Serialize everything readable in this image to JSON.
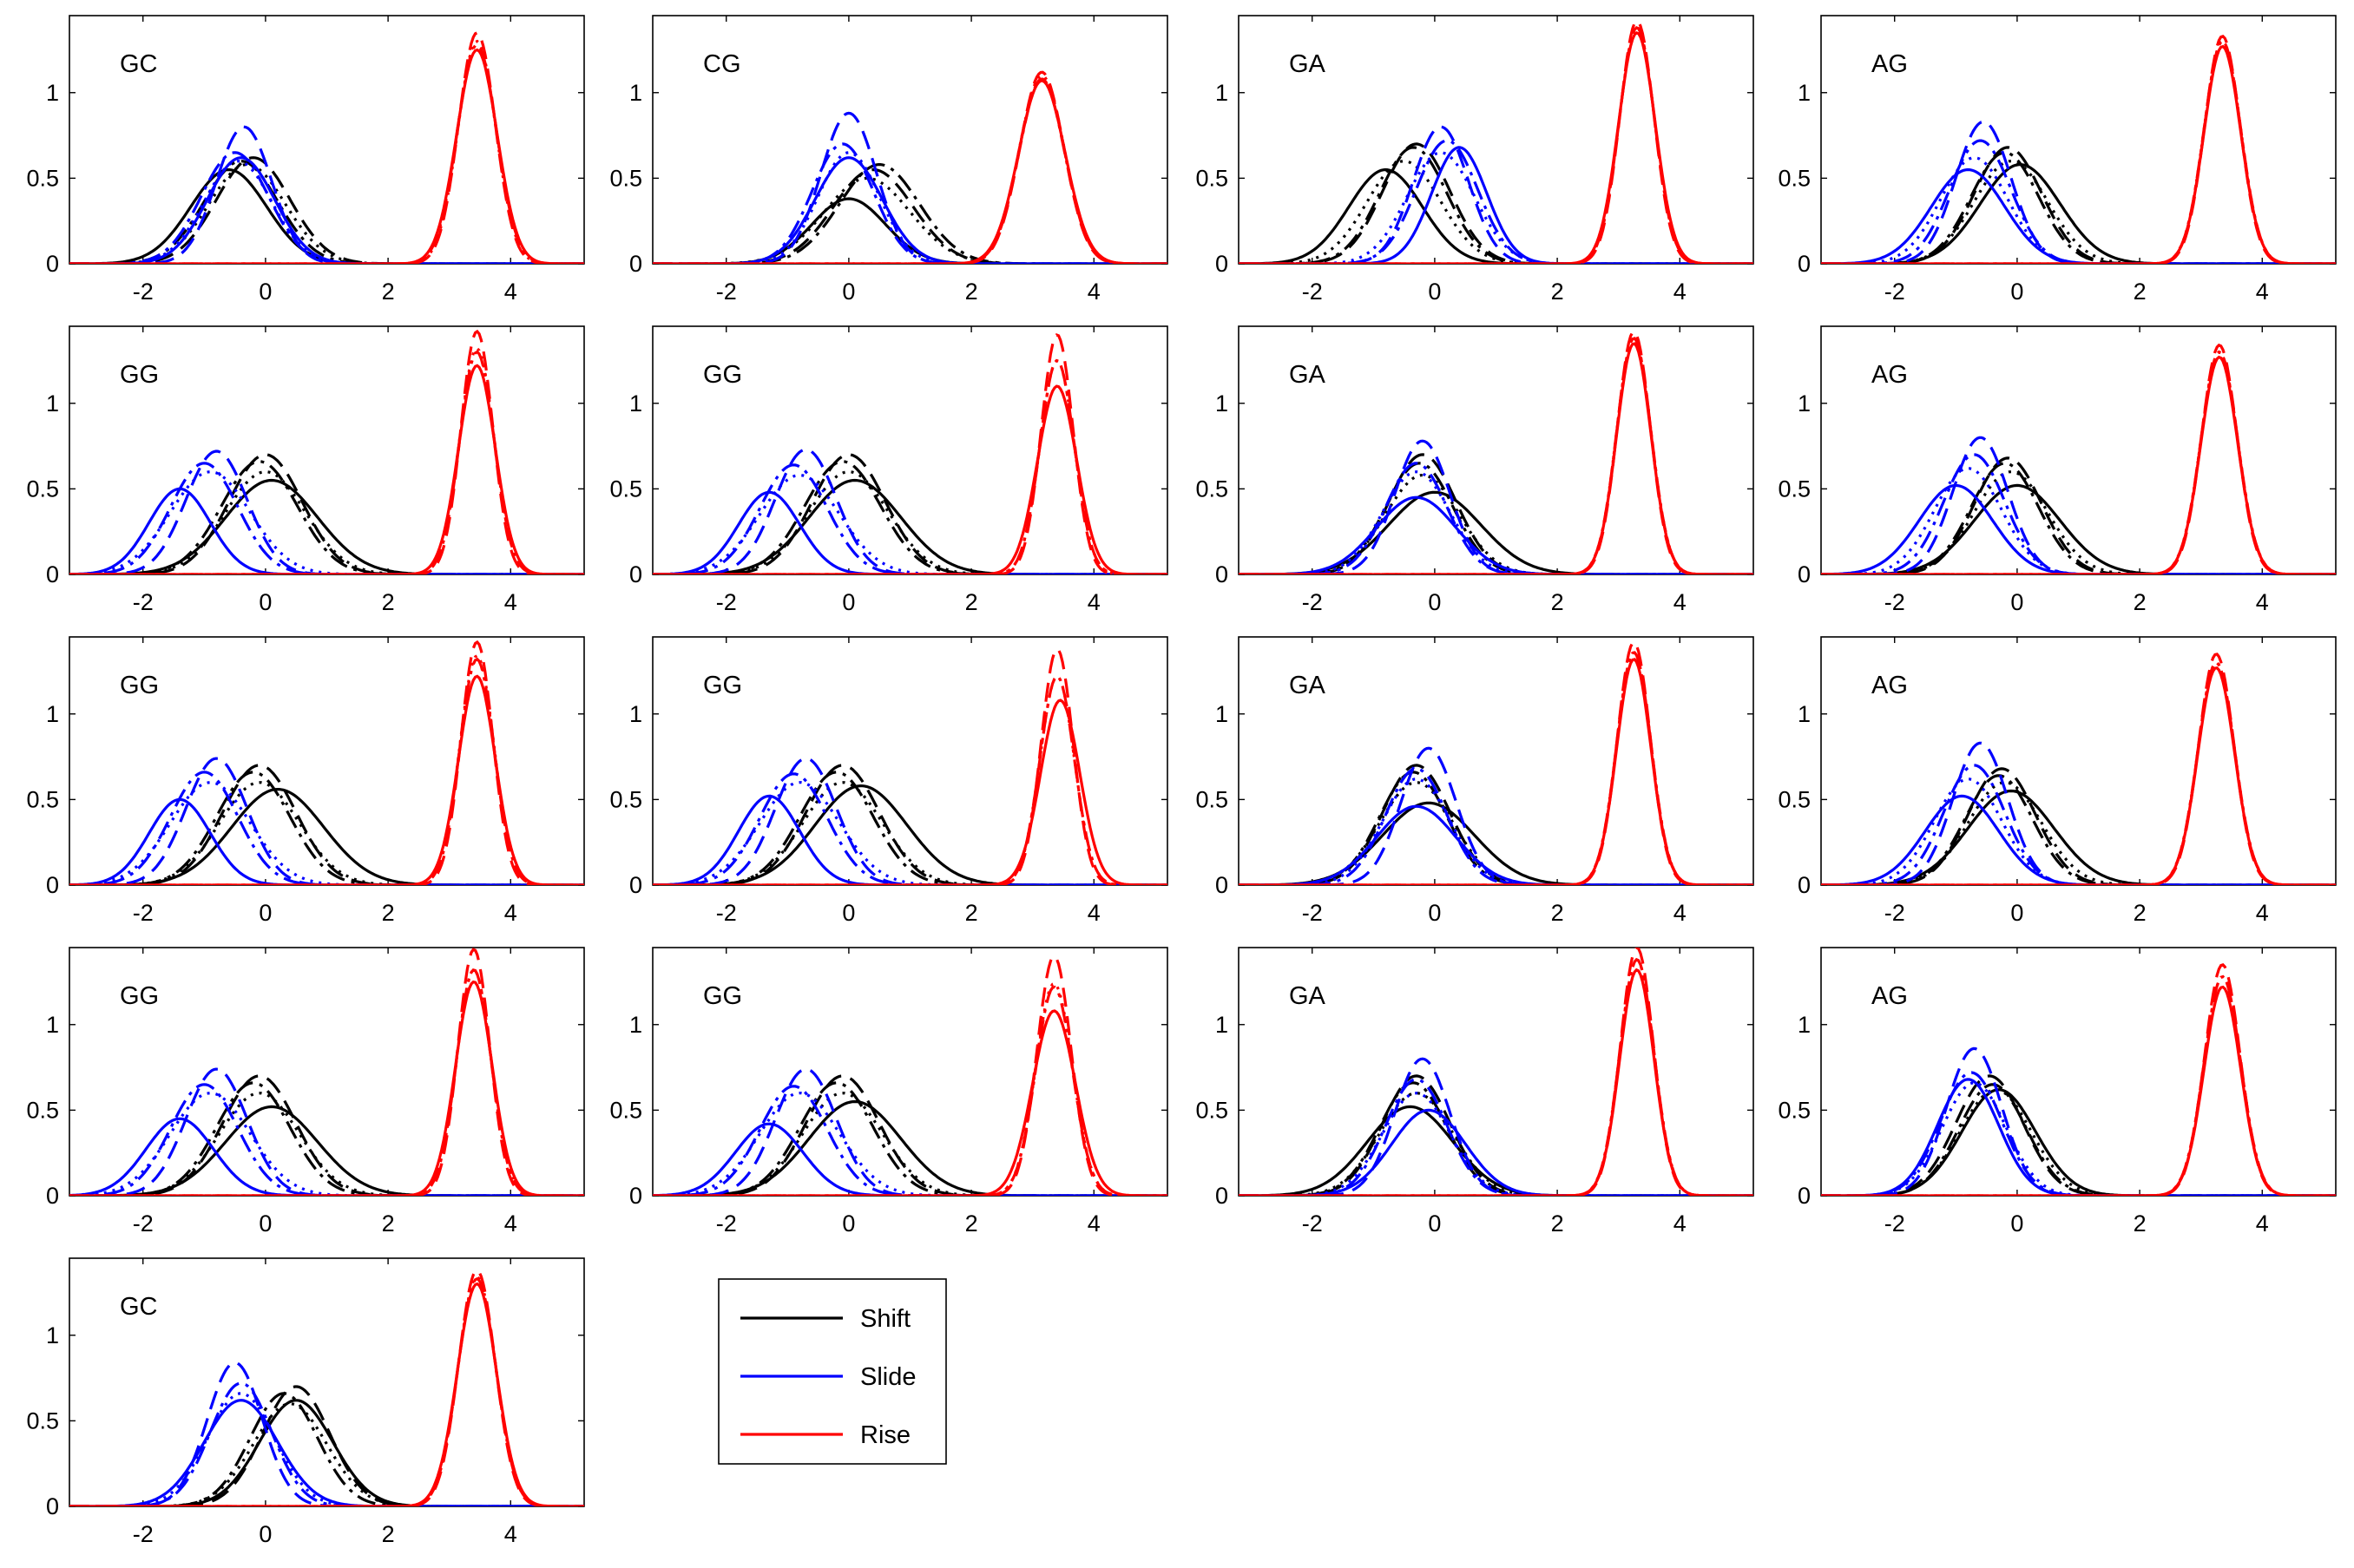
{
  "legend": [
    {
      "label": "Shift",
      "color": "#000000"
    },
    {
      "label": "Slide",
      "color": "#0000ff"
    },
    {
      "label": "Rise",
      "color": "#ff0000"
    }
  ],
  "chart_data": {
    "type": "line",
    "title": "",
    "xlabel": "",
    "ylabel": "",
    "xlim": [
      -3.2,
      5.2
    ],
    "ylim": [
      0,
      1.45
    ],
    "x_ticks": [
      -2,
      0,
      2,
      4
    ],
    "y_ticks": [
      0,
      0.5,
      1
    ],
    "y_tick_labels": [
      "0",
      "0.5",
      "1"
    ],
    "grid": false,
    "legend_placement": "bottom, beside last panel",
    "line_styles": [
      "solid",
      "dashed",
      "dash-dot",
      "dotted"
    ],
    "series": [
      {
        "name": "Shift",
        "color": "#000000"
      },
      {
        "name": "Slide",
        "color": "#0000ff"
      },
      {
        "name": "Rise",
        "color": "#ff0000"
      }
    ],
    "panels": [
      {
        "label": "GC",
        "shift": [
          [
            -0.6,
            0.55,
            0.62
          ],
          [
            -0.2,
            0.62,
            0.6
          ],
          [
            -0.4,
            0.6,
            0.6
          ],
          [
            -0.3,
            0.58,
            0.62
          ]
        ],
        "slide": [
          [
            -0.4,
            0.62,
            0.55
          ],
          [
            -0.35,
            0.8,
            0.45
          ],
          [
            -0.5,
            0.65,
            0.55
          ],
          [
            -0.45,
            0.6,
            0.55
          ]
        ],
        "rise": [
          [
            3.45,
            1.25,
            0.33
          ],
          [
            3.45,
            1.35,
            0.3
          ],
          [
            3.45,
            1.28,
            0.32
          ],
          [
            3.45,
            1.3,
            0.31
          ]
        ]
      },
      {
        "label": "CG",
        "shift": [
          [
            0,
            0.38,
            0.6
          ],
          [
            0.4,
            0.55,
            0.65
          ],
          [
            0.5,
            0.58,
            0.65
          ],
          [
            0.3,
            0.5,
            0.7
          ]
        ],
        "slide": [
          [
            0,
            0.62,
            0.55
          ],
          [
            0,
            0.88,
            0.45
          ],
          [
            -0.1,
            0.7,
            0.5
          ],
          [
            0,
            0.65,
            0.5
          ]
        ],
        "rise": [
          [
            3.15,
            1.07,
            0.38
          ],
          [
            3.15,
            1.12,
            0.36
          ],
          [
            3.15,
            1.08,
            0.37
          ],
          [
            3.15,
            1.1,
            0.37
          ]
        ]
      },
      {
        "label": "GA",
        "shift": [
          [
            -0.8,
            0.55,
            0.6
          ],
          [
            -0.3,
            0.7,
            0.55
          ],
          [
            -0.35,
            0.68,
            0.55
          ],
          [
            -0.5,
            0.6,
            0.6
          ]
        ],
        "slide": [
          [
            0.4,
            0.68,
            0.45
          ],
          [
            0.1,
            0.8,
            0.45
          ],
          [
            0.2,
            0.72,
            0.5
          ],
          [
            0.1,
            0.65,
            0.55
          ]
        ],
        "rise": [
          [
            3.3,
            1.35,
            0.3
          ],
          [
            3.3,
            1.42,
            0.28
          ],
          [
            3.3,
            1.38,
            0.29
          ],
          [
            3.3,
            1.38,
            0.29
          ]
        ]
      },
      {
        "label": "AG",
        "shift": [
          [
            0.05,
            0.58,
            0.65
          ],
          [
            -0.15,
            0.68,
            0.55
          ],
          [
            -0.2,
            0.65,
            0.55
          ],
          [
            -0.1,
            0.6,
            0.6
          ]
        ],
        "slide": [
          [
            -0.8,
            0.55,
            0.6
          ],
          [
            -0.55,
            0.83,
            0.45
          ],
          [
            -0.6,
            0.72,
            0.5
          ],
          [
            -0.7,
            0.62,
            0.55
          ]
        ],
        "rise": [
          [
            3.35,
            1.27,
            0.3
          ],
          [
            3.35,
            1.33,
            0.29
          ],
          [
            3.35,
            1.3,
            0.3
          ],
          [
            3.35,
            1.3,
            0.3
          ]
        ]
      },
      {
        "label": "GG",
        "shift": [
          [
            0.1,
            0.55,
            0.75
          ],
          [
            0,
            0.7,
            0.6
          ],
          [
            -0.1,
            0.66,
            0.62
          ],
          [
            0,
            0.6,
            0.65
          ]
        ],
        "slide": [
          [
            -1.4,
            0.5,
            0.5
          ],
          [
            -0.8,
            0.72,
            0.5
          ],
          [
            -1,
            0.65,
            0.55
          ],
          [
            -0.9,
            0.6,
            0.65
          ]
        ],
        "rise": [
          [
            3.45,
            1.22,
            0.3
          ],
          [
            3.45,
            1.42,
            0.26
          ],
          [
            3.45,
            1.3,
            0.28
          ],
          [
            3.45,
            1.32,
            0.28
          ]
        ]
      },
      {
        "label": "GG",
        "shift": [
          [
            0.1,
            0.55,
            0.75
          ],
          [
            0,
            0.7,
            0.6
          ],
          [
            -0.1,
            0.66,
            0.62
          ],
          [
            0,
            0.6,
            0.65
          ]
        ],
        "slide": [
          [
            -1.3,
            0.48,
            0.5
          ],
          [
            -0.7,
            0.73,
            0.5
          ],
          [
            -0.9,
            0.64,
            0.55
          ],
          [
            -0.8,
            0.58,
            0.65
          ]
        ],
        "rise": [
          [
            3.4,
            1.1,
            0.32
          ],
          [
            3.4,
            1.4,
            0.26
          ],
          [
            3.4,
            1.25,
            0.28
          ],
          [
            3.4,
            1.25,
            0.28
          ]
        ]
      },
      {
        "label": "GA",
        "shift": [
          [
            0,
            0.48,
            0.75
          ],
          [
            -0.2,
            0.7,
            0.55
          ],
          [
            -0.25,
            0.65,
            0.55
          ],
          [
            -0.2,
            0.58,
            0.6
          ]
        ],
        "slide": [
          [
            -0.3,
            0.45,
            0.65
          ],
          [
            -0.2,
            0.78,
            0.45
          ],
          [
            -0.3,
            0.65,
            0.5
          ],
          [
            -0.3,
            0.6,
            0.55
          ]
        ],
        "rise": [
          [
            3.25,
            1.35,
            0.28
          ],
          [
            3.25,
            1.42,
            0.27
          ],
          [
            3.25,
            1.38,
            0.28
          ],
          [
            3.25,
            1.38,
            0.28
          ]
        ]
      },
      {
        "label": "AG",
        "shift": [
          [
            0,
            0.52,
            0.7
          ],
          [
            -0.15,
            0.68,
            0.55
          ],
          [
            -0.2,
            0.65,
            0.55
          ],
          [
            -0.1,
            0.6,
            0.6
          ]
        ],
        "slide": [
          [
            -1,
            0.52,
            0.6
          ],
          [
            -0.6,
            0.8,
            0.45
          ],
          [
            -0.7,
            0.7,
            0.5
          ],
          [
            -0.8,
            0.62,
            0.55
          ]
        ],
        "rise": [
          [
            3.3,
            1.27,
            0.3
          ],
          [
            3.3,
            1.34,
            0.29
          ],
          [
            3.3,
            1.3,
            0.3
          ],
          [
            3.3,
            1.3,
            0.3
          ]
        ]
      },
      {
        "label": "GG",
        "shift": [
          [
            0.2,
            0.56,
            0.75
          ],
          [
            -0.1,
            0.7,
            0.6
          ],
          [
            -0.2,
            0.66,
            0.6
          ],
          [
            -0.1,
            0.6,
            0.65
          ]
        ],
        "slide": [
          [
            -1.4,
            0.5,
            0.5
          ],
          [
            -0.8,
            0.74,
            0.5
          ],
          [
            -1,
            0.66,
            0.55
          ],
          [
            -0.9,
            0.6,
            0.65
          ]
        ],
        "rise": [
          [
            3.45,
            1.22,
            0.3
          ],
          [
            3.45,
            1.42,
            0.26
          ],
          [
            3.45,
            1.32,
            0.28
          ],
          [
            3.45,
            1.34,
            0.28
          ]
        ]
      },
      {
        "label": "GG",
        "shift": [
          [
            0.2,
            0.58,
            0.75
          ],
          [
            -0.1,
            0.7,
            0.6
          ],
          [
            -0.2,
            0.66,
            0.6
          ],
          [
            -0.1,
            0.6,
            0.65
          ]
        ],
        "slide": [
          [
            -1.3,
            0.52,
            0.5
          ],
          [
            -0.7,
            0.74,
            0.5
          ],
          [
            -0.9,
            0.65,
            0.55
          ],
          [
            -0.8,
            0.6,
            0.65
          ]
        ],
        "rise": [
          [
            3.45,
            1.08,
            0.32
          ],
          [
            3.4,
            1.38,
            0.26
          ],
          [
            3.4,
            1.22,
            0.28
          ],
          [
            3.4,
            1.22,
            0.28
          ]
        ]
      },
      {
        "label": "GA",
        "shift": [
          [
            -0.1,
            0.48,
            0.75
          ],
          [
            -0.3,
            0.7,
            0.55
          ],
          [
            -0.35,
            0.66,
            0.55
          ],
          [
            -0.3,
            0.6,
            0.6
          ]
        ],
        "slide": [
          [
            -0.3,
            0.46,
            0.65
          ],
          [
            -0.1,
            0.8,
            0.45
          ],
          [
            -0.3,
            0.68,
            0.5
          ],
          [
            -0.3,
            0.62,
            0.55
          ]
        ],
        "rise": [
          [
            3.25,
            1.32,
            0.28
          ],
          [
            3.25,
            1.42,
            0.27
          ],
          [
            3.25,
            1.36,
            0.28
          ],
          [
            3.25,
            1.36,
            0.28
          ]
        ]
      },
      {
        "label": "AG",
        "shift": [
          [
            -0.1,
            0.55,
            0.7
          ],
          [
            -0.25,
            0.68,
            0.55
          ],
          [
            -0.3,
            0.64,
            0.55
          ],
          [
            -0.2,
            0.6,
            0.6
          ]
        ],
        "slide": [
          [
            -0.9,
            0.52,
            0.6
          ],
          [
            -0.6,
            0.83,
            0.45
          ],
          [
            -0.7,
            0.7,
            0.5
          ],
          [
            -0.8,
            0.62,
            0.55
          ]
        ],
        "rise": [
          [
            3.25,
            1.27,
            0.3
          ],
          [
            3.25,
            1.35,
            0.29
          ],
          [
            3.25,
            1.3,
            0.3
          ],
          [
            3.25,
            1.3,
            0.3
          ]
        ]
      },
      {
        "label": "GG",
        "shift": [
          [
            0.1,
            0.52,
            0.75
          ],
          [
            -0.1,
            0.7,
            0.6
          ],
          [
            -0.2,
            0.66,
            0.6
          ],
          [
            -0.1,
            0.6,
            0.65
          ]
        ],
        "slide": [
          [
            -1.4,
            0.45,
            0.55
          ],
          [
            -0.8,
            0.74,
            0.5
          ],
          [
            -1,
            0.65,
            0.55
          ],
          [
            -0.9,
            0.6,
            0.65
          ]
        ],
        "rise": [
          [
            3.4,
            1.25,
            0.3
          ],
          [
            3.4,
            1.44,
            0.26
          ],
          [
            3.4,
            1.32,
            0.28
          ],
          [
            3.4,
            1.32,
            0.28
          ]
        ]
      },
      {
        "label": "GG",
        "shift": [
          [
            0.1,
            0.55,
            0.75
          ],
          [
            -0.1,
            0.7,
            0.6
          ],
          [
            -0.2,
            0.66,
            0.6
          ],
          [
            -0.1,
            0.6,
            0.65
          ]
        ],
        "slide": [
          [
            -1.3,
            0.42,
            0.55
          ],
          [
            -0.7,
            0.74,
            0.5
          ],
          [
            -0.9,
            0.64,
            0.55
          ],
          [
            -0.8,
            0.6,
            0.65
          ]
        ],
        "rise": [
          [
            3.35,
            1.08,
            0.35
          ],
          [
            3.35,
            1.4,
            0.28
          ],
          [
            3.35,
            1.22,
            0.3
          ],
          [
            3.35,
            1.24,
            0.3
          ]
        ]
      },
      {
        "label": "GA",
        "shift": [
          [
            -0.4,
            0.52,
            0.7
          ],
          [
            -0.3,
            0.7,
            0.55
          ],
          [
            -0.35,
            0.66,
            0.55
          ],
          [
            -0.3,
            0.6,
            0.6
          ]
        ],
        "slide": [
          [
            -0.1,
            0.5,
            0.6
          ],
          [
            -0.2,
            0.8,
            0.45
          ],
          [
            -0.3,
            0.68,
            0.5
          ],
          [
            -0.3,
            0.6,
            0.55
          ]
        ],
        "rise": [
          [
            3.3,
            1.32,
            0.28
          ],
          [
            3.3,
            1.45,
            0.27
          ],
          [
            3.3,
            1.38,
            0.28
          ],
          [
            3.3,
            1.38,
            0.28
          ]
        ]
      },
      {
        "label": "AG",
        "shift": [
          [
            -0.3,
            0.62,
            0.6
          ],
          [
            -0.45,
            0.7,
            0.55
          ],
          [
            -0.4,
            0.65,
            0.55
          ],
          [
            -0.35,
            0.62,
            0.58
          ]
        ],
        "slide": [
          [
            -0.8,
            0.68,
            0.5
          ],
          [
            -0.7,
            0.86,
            0.45
          ],
          [
            -0.75,
            0.72,
            0.5
          ],
          [
            -0.7,
            0.66,
            0.52
          ]
        ],
        "rise": [
          [
            3.35,
            1.22,
            0.3
          ],
          [
            3.35,
            1.35,
            0.29
          ],
          [
            3.35,
            1.28,
            0.3
          ],
          [
            3.35,
            1.28,
            0.3
          ]
        ]
      },
      {
        "label": "GC",
        "shift": [
          [
            0.5,
            0.62,
            0.6
          ],
          [
            0.5,
            0.7,
            0.55
          ],
          [
            0.3,
            0.66,
            0.55
          ],
          [
            0.4,
            0.6,
            0.6
          ]
        ],
        "slide": [
          [
            -0.4,
            0.62,
            0.6
          ],
          [
            -0.5,
            0.84,
            0.45
          ],
          [
            -0.4,
            0.72,
            0.5
          ],
          [
            -0.4,
            0.66,
            0.55
          ]
        ],
        "rise": [
          [
            3.45,
            1.3,
            0.32
          ],
          [
            3.45,
            1.38,
            0.3
          ],
          [
            3.45,
            1.33,
            0.31
          ],
          [
            3.45,
            1.34,
            0.31
          ]
        ]
      }
    ]
  }
}
